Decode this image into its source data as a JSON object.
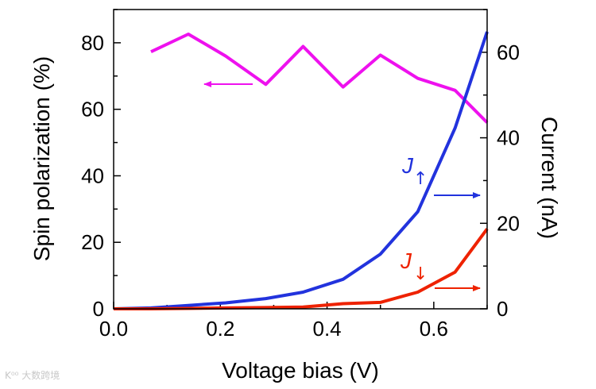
{
  "chart_data": {
    "type": "line",
    "xlabel": "Voltage bias (V)",
    "ylabel_left": "Spin polarization (%)",
    "ylabel_right": "Current (nA)",
    "xlim": [
      0.0,
      0.7
    ],
    "ylim_left": [
      0,
      90
    ],
    "ylim_right": [
      0,
      70
    ],
    "x_ticks": [
      0.0,
      0.2,
      0.4,
      0.6
    ],
    "x_tick_labels": [
      "0.0",
      "0.2",
      "0.4",
      "0.6"
    ],
    "y_left_ticks": [
      0,
      20,
      40,
      60,
      80
    ],
    "y_left_tick_labels": [
      "0",
      "20",
      "40",
      "60",
      "80"
    ],
    "y_right_ticks": [
      0,
      20,
      40,
      60
    ],
    "y_right_tick_labels": [
      "0",
      "20",
      "40",
      "60"
    ],
    "series": [
      {
        "name": "Spin polarization",
        "axis": "left",
        "color": "#ee11ee",
        "x": [
          0.07,
          0.14,
          0.21,
          0.285,
          0.355,
          0.43,
          0.5,
          0.57,
          0.64,
          0.7
        ],
        "values": [
          77.3,
          82.6,
          76.0,
          67.5,
          78.9,
          66.7,
          76.3,
          69.3,
          65.7,
          56.0
        ]
      },
      {
        "name": "J↑",
        "axis": "right",
        "color": "#2233dd",
        "x": [
          0.0,
          0.07,
          0.14,
          0.21,
          0.285,
          0.355,
          0.43,
          0.5,
          0.57,
          0.64,
          0.7
        ],
        "values": [
          0.0,
          0.2,
          0.8,
          1.4,
          2.4,
          3.9,
          6.9,
          12.8,
          22.7,
          42.3,
          64.8
        ]
      },
      {
        "name": "J↓",
        "axis": "right",
        "color": "#ee2200",
        "x": [
          0.0,
          0.07,
          0.14,
          0.21,
          0.285,
          0.355,
          0.43,
          0.5,
          0.57,
          0.64,
          0.7
        ],
        "values": [
          0.0,
          0.0,
          0.1,
          0.2,
          0.3,
          0.4,
          1.2,
          1.5,
          3.9,
          8.6,
          18.7
        ]
      }
    ],
    "annotations": [
      {
        "label": "J",
        "subscript": "↑",
        "color": "#2233dd",
        "arrow": "right"
      },
      {
        "label": "J",
        "subscript": "↓",
        "color": "#ee2200",
        "arrow": "right"
      },
      {
        "label": "",
        "color": "#ee11ee",
        "arrow": "left"
      }
    ]
  },
  "watermark": "K⁰⁰ 大数跨境"
}
